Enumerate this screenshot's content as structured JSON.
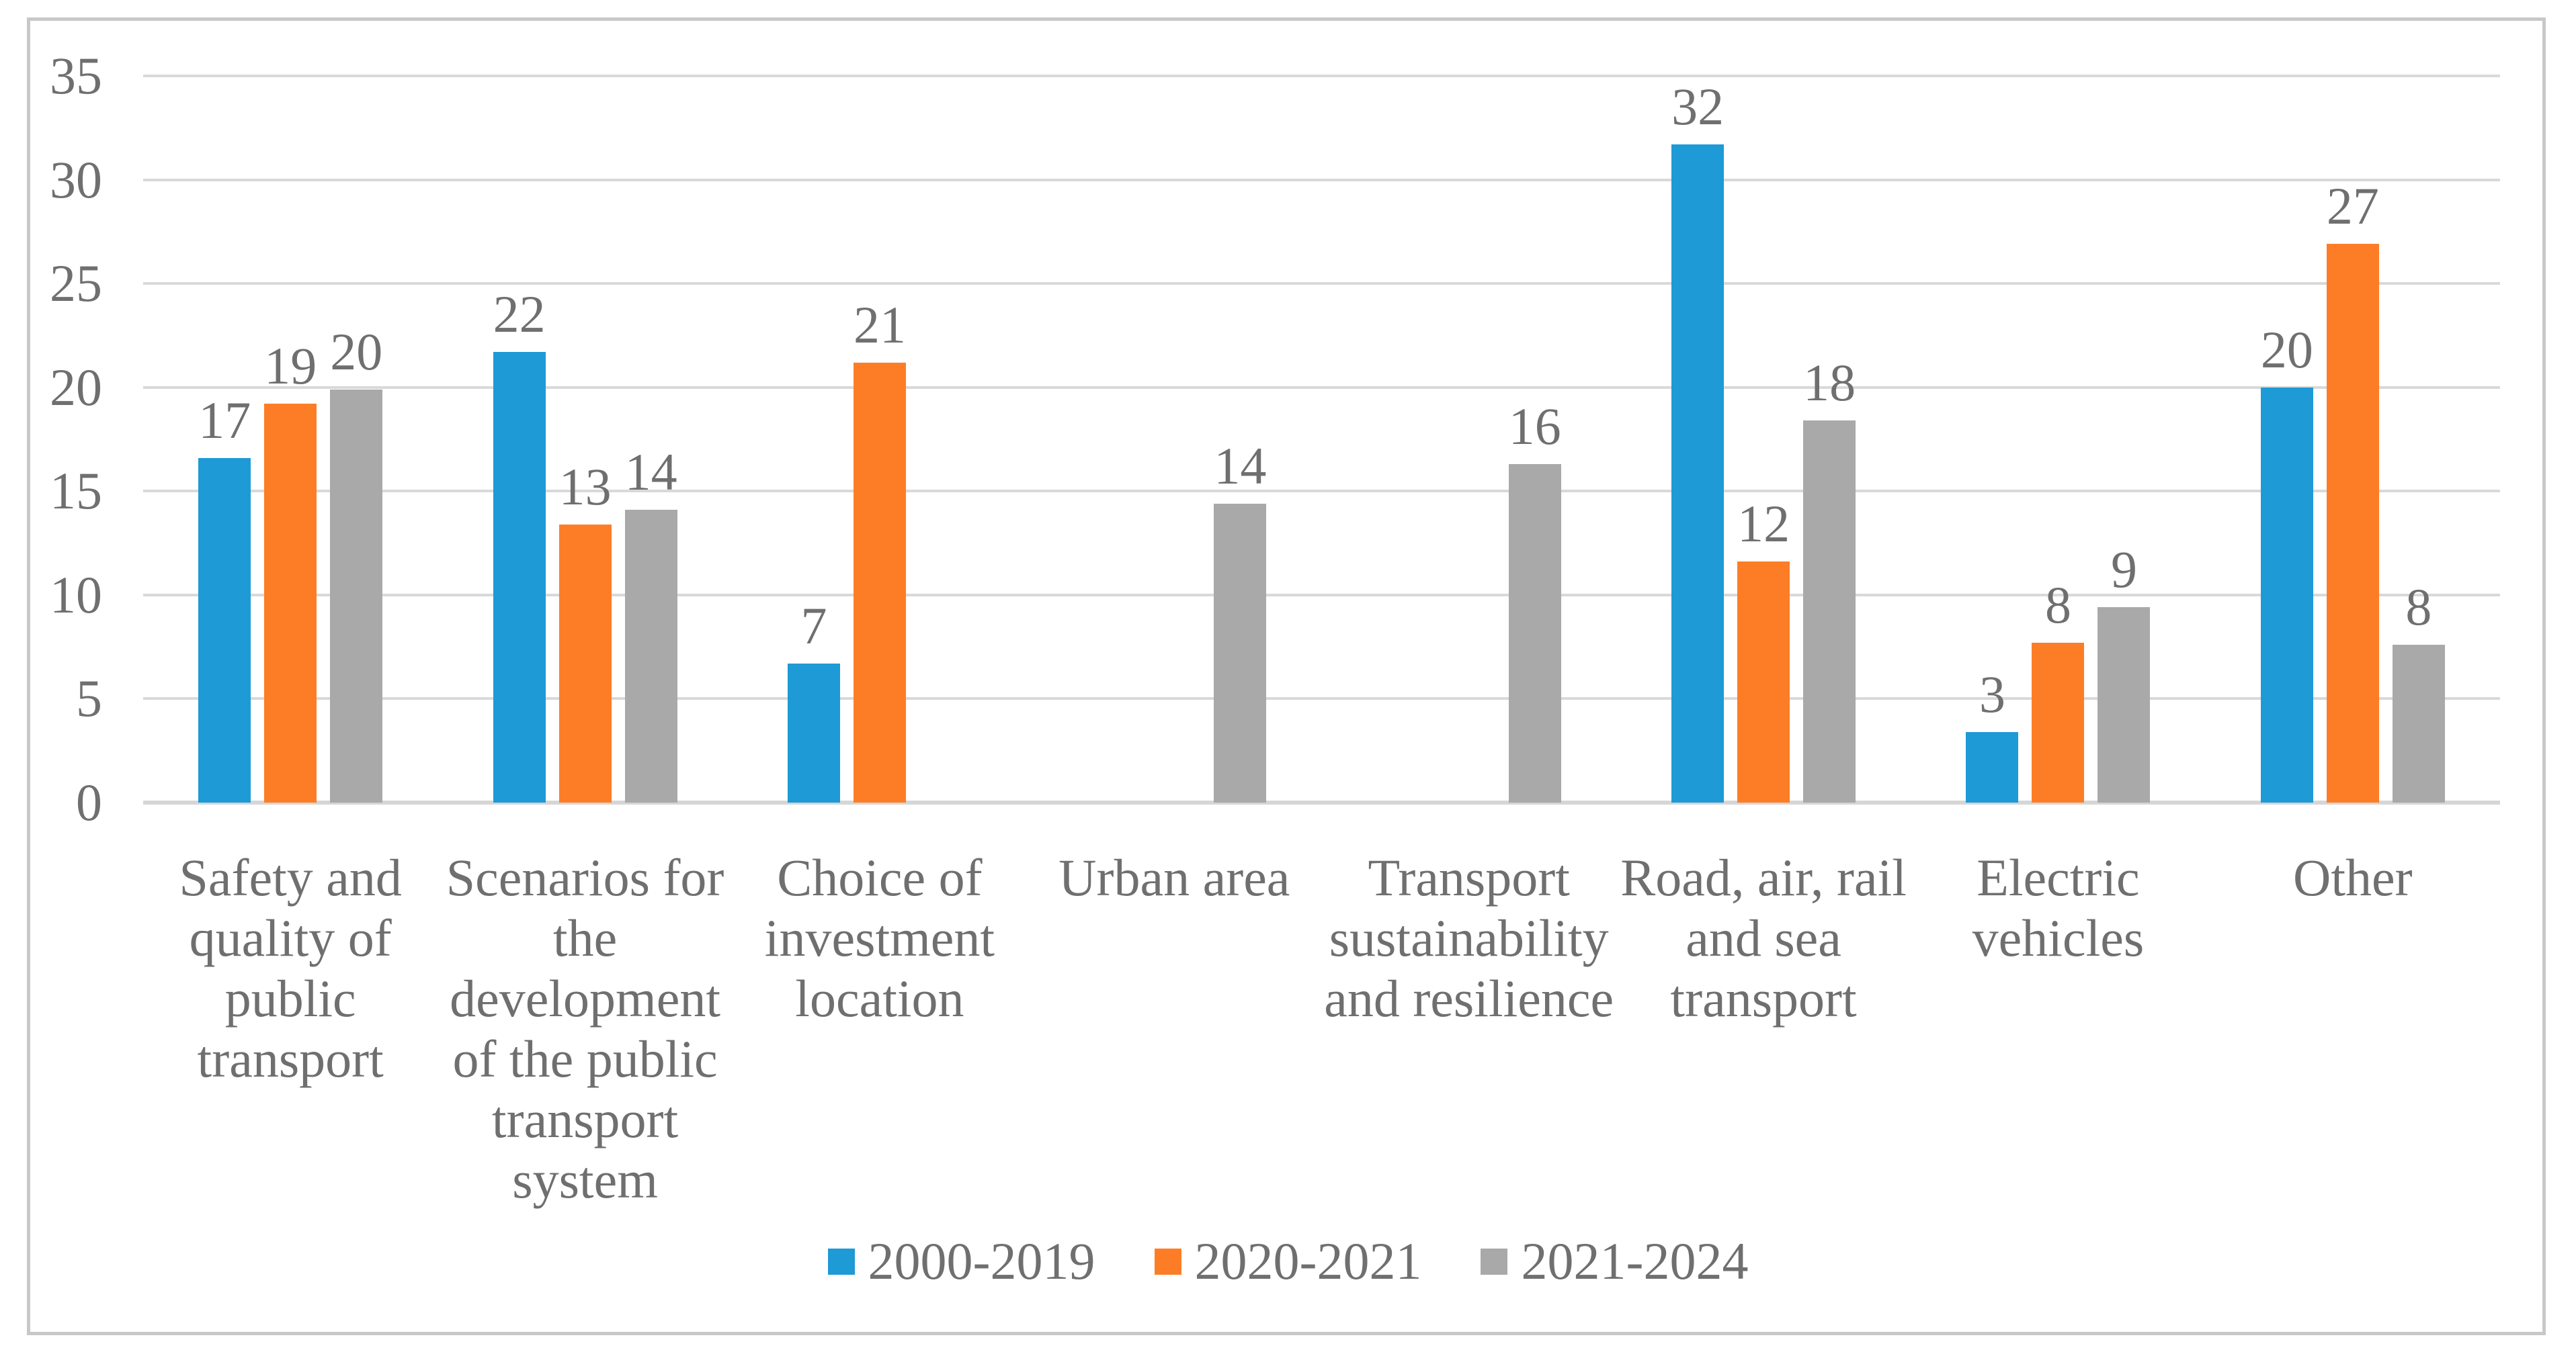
{
  "chart_data": {
    "type": "bar",
    "title": "",
    "categories": [
      "Safety and\nquality of\npublic\ntransport",
      "Scenarios for\nthe\ndevelopment\nof the public\ntransport\nsystem",
      "Choice of\ninvestment\nlocation",
      "Urban area",
      "Transport\nsustainability\nand resilience",
      "Road, air, rail\nand sea\ntransport",
      "Electric\nvehicles",
      "Other"
    ],
    "series": [
      {
        "name": "2000-2019",
        "color": "#1E9AD6",
        "values": [
          17,
          22,
          7,
          null,
          null,
          32,
          3,
          20
        ],
        "bar_heights": [
          16.6,
          21.7,
          6.7,
          null,
          null,
          31.7,
          3.4,
          20.0
        ]
      },
      {
        "name": "2020-2021",
        "color": "#FD7D26",
        "values": [
          19,
          13,
          21,
          null,
          null,
          12,
          8,
          27
        ],
        "bar_heights": [
          19.2,
          13.4,
          21.2,
          null,
          null,
          11.6,
          7.7,
          26.9
        ]
      },
      {
        "name": "2021-2024",
        "color": "#A9A9A9",
        "values": [
          20,
          14,
          null,
          14,
          16,
          18,
          9,
          8
        ],
        "bar_heights": [
          19.9,
          14.1,
          null,
          14.4,
          16.3,
          18.4,
          9.4,
          7.6
        ]
      }
    ],
    "y_axis": {
      "min": 0,
      "max": 35,
      "step": 5,
      "ticks": [
        0,
        5,
        10,
        15,
        20,
        25,
        30,
        35
      ]
    },
    "grid": true,
    "legend_position": "bottom",
    "style": {
      "text_color": "#6F6F6F",
      "gridline_color": "#D9D9D9",
      "frame_border_color": "#C8C8C8",
      "background": "#FFFFFF"
    }
  }
}
